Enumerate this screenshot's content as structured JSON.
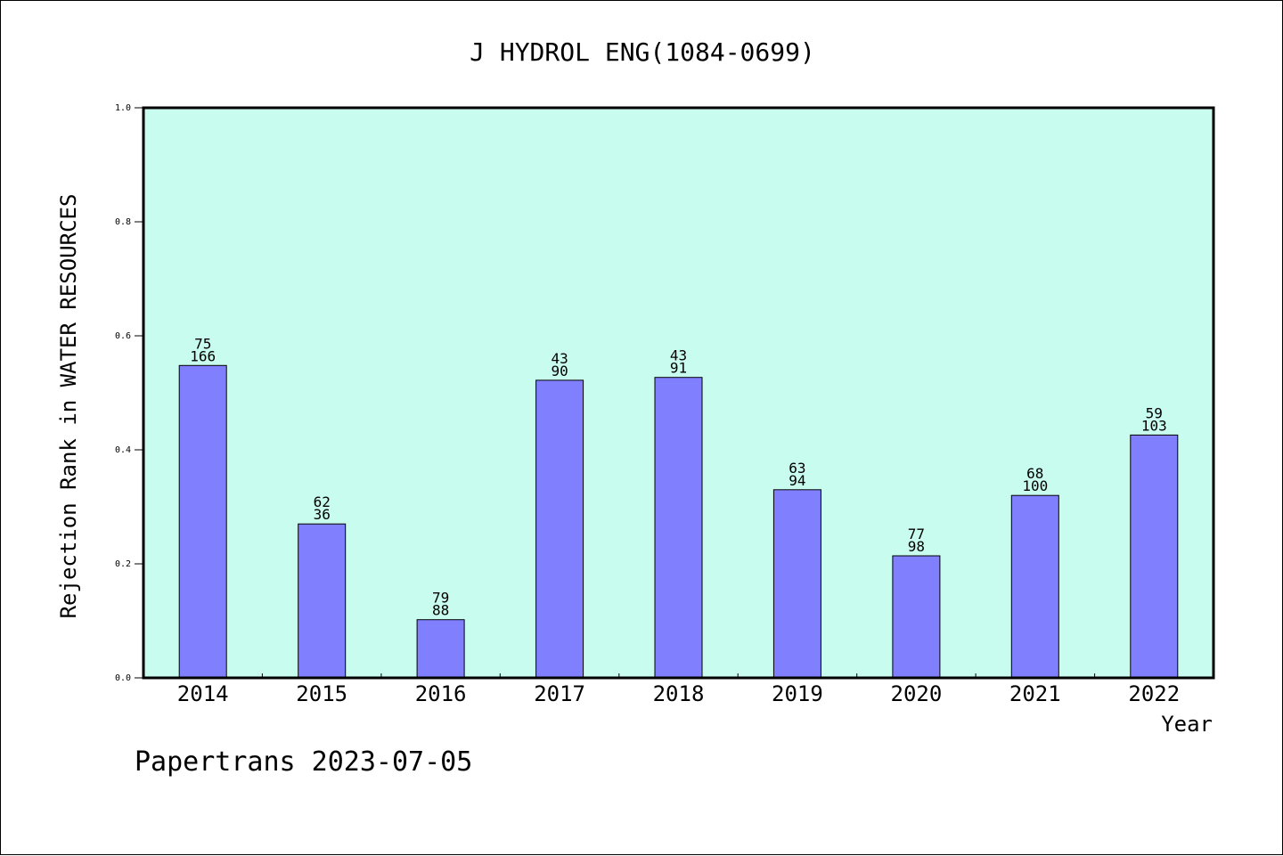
{
  "chart_data": {
    "type": "bar",
    "title": "J HYDROL ENG(1084-0699)",
    "xlabel": "Year",
    "ylabel": "Rejection Rank in WATER RESOURCES",
    "ylim": [
      0,
      1.0
    ],
    "yticks": [
      "0.0",
      "0.2",
      "0.4",
      "0.6",
      "0.8",
      "1.0"
    ],
    "grid": false,
    "categories": [
      "2014",
      "2015",
      "2016",
      "2017",
      "2018",
      "2019",
      "2020",
      "2021",
      "2022"
    ],
    "values": [
      0.548,
      0.27,
      0.102,
      0.522,
      0.527,
      0.33,
      0.214,
      0.32,
      0.426
    ],
    "label_top": [
      "75",
      "62",
      "79",
      "43",
      "43",
      "63",
      "77",
      "68",
      "59"
    ],
    "label_bottom": [
      "166",
      "36",
      "88",
      "90",
      "91",
      "94",
      "98",
      "100",
      "103"
    ],
    "colors": {
      "plot_background": "#c8fcee",
      "bar_fill": "#8080ff",
      "bar_stroke": "#000000"
    }
  },
  "footer": {
    "text": "Papertrans 2023-07-05"
  }
}
